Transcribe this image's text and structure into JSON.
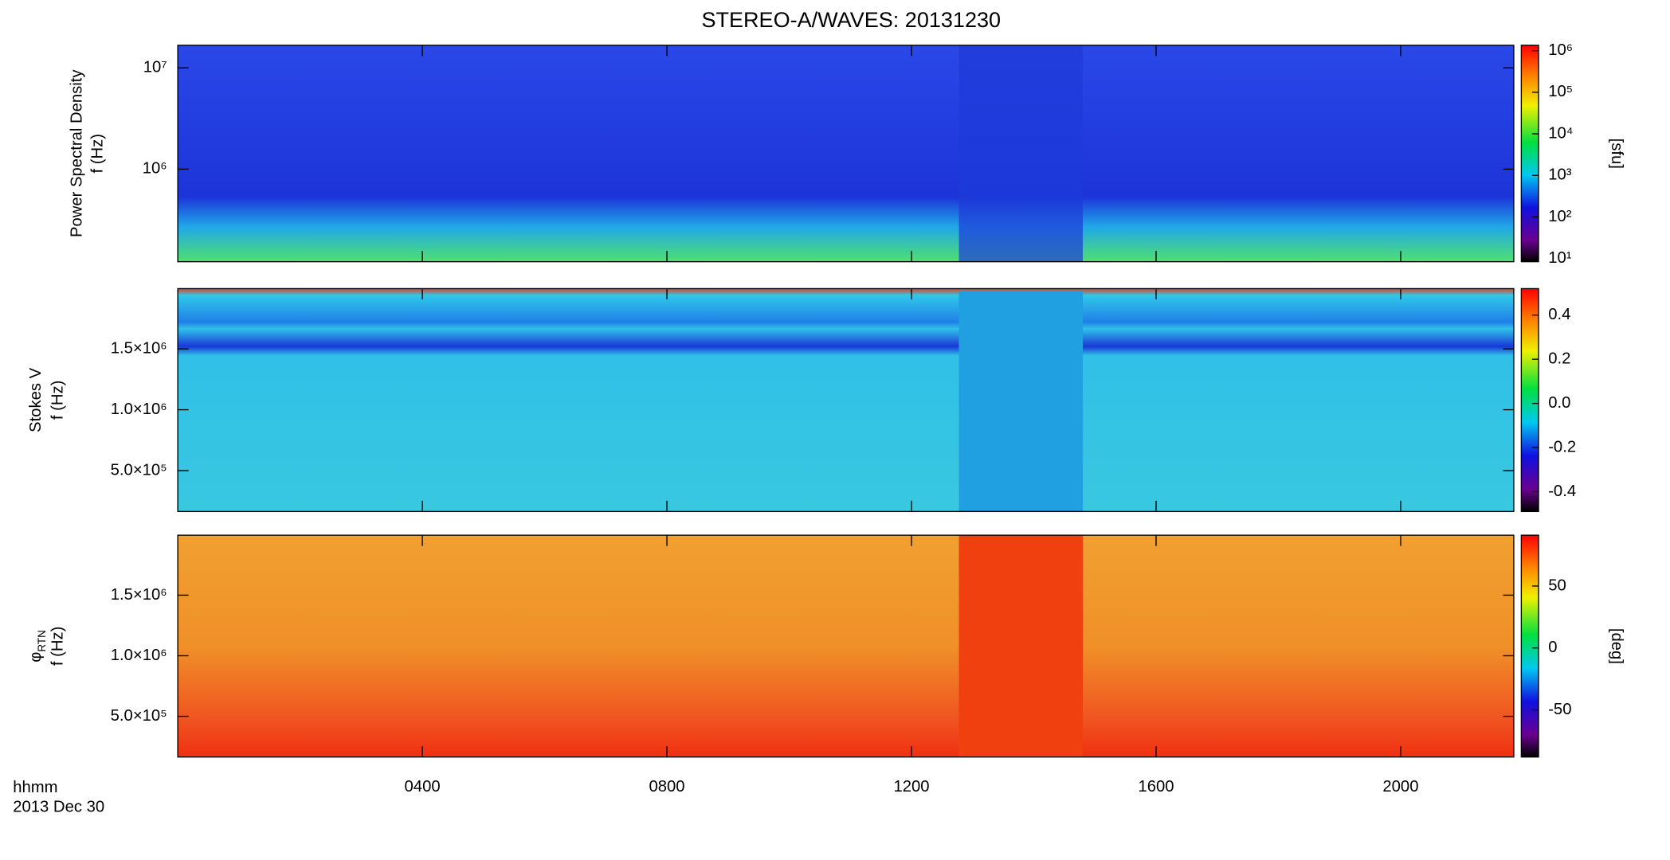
{
  "chart_data": [
    {
      "type": "spectrogram",
      "title": "STEREO-A/WAVES: 20131230",
      "ylabel": "Power Spectral Density",
      "ylabel2": "f (Hz)",
      "ylog": true,
      "ylim": [
        122000,
        16700000
      ],
      "yticks": [
        {
          "value": 1000000,
          "label": "10⁶"
        },
        {
          "value": 10000000,
          "label": "10⁷"
        }
      ],
      "zlog": true,
      "zlim": [
        8.4,
        1350000
      ],
      "zlabel": "[sfu]",
      "zticks": [
        {
          "value": 10,
          "label": "10¹"
        },
        {
          "value": 100,
          "label": "10²"
        },
        {
          "value": 1000,
          "label": "10³"
        },
        {
          "value": 10000,
          "label": "10⁴"
        },
        {
          "value": 100000,
          "label": "10⁵"
        },
        {
          "value": 1000000,
          "label": "10⁶"
        }
      ]
    },
    {
      "type": "spectrogram",
      "ylabel": "Stokes V",
      "ylabel2": "f (Hz)",
      "ylog": false,
      "ylim": [
        164000,
        1995000
      ],
      "yticks": [
        {
          "value": 500000,
          "label": "5.0×10⁵"
        },
        {
          "value": 1000000,
          "label": "1.0×10⁶"
        },
        {
          "value": 1500000,
          "label": "1.5×10⁶"
        }
      ],
      "zlog": false,
      "zlim": [
        -0.49,
        0.52
      ],
      "zticks": [
        -0.4,
        -0.2,
        {
          "value": 0,
          "label": "0.0"
        },
        0.2,
        0.4
      ]
    },
    {
      "type": "spectrogram",
      "ylabel": "φ",
      "ylabel_sub": "RTN",
      "ylabel2": "f (Hz)",
      "ylog": false,
      "ylim": [
        164000,
        1995000
      ],
      "yticks": [
        {
          "value": 500000,
          "label": "5.0×10⁵"
        },
        {
          "value": 1000000,
          "label": "1.0×10⁶"
        },
        {
          "value": 1500000,
          "label": "1.5×10⁶"
        }
      ],
      "zlog": false,
      "zlim": [
        -88,
        91
      ],
      "zlabel": "[deg]",
      "zticks": [
        -50,
        0,
        50
      ],
      "xlabel": "hhmm",
      "date": "2013 Dec 30",
      "xlim": [
        0,
        21.85
      ],
      "xticks": [
        {
          "value": 4,
          "label": "0400"
        },
        {
          "value": 8,
          "label": "0800"
        },
        {
          "value": 12,
          "label": "1200"
        },
        {
          "value": 16,
          "label": "1600"
        },
        {
          "value": 20,
          "label": "2000"
        }
      ]
    }
  ]
}
